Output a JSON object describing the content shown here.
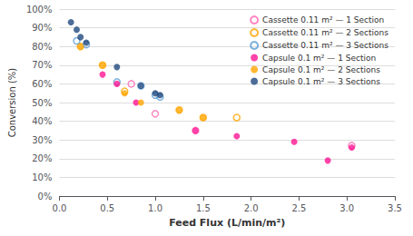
{
  "chart_data": {
    "type": "scatter",
    "xlabel": "Feed Flux (L/min/m²)",
    "ylabel": "Conversion (%)",
    "xlim": [
      0,
      3.5
    ],
    "ylim": [
      0,
      1.0
    ],
    "xticks": [
      {
        "value": 0.0,
        "label": "0.0"
      },
      0.5,
      {
        "value": 1.0,
        "label": "1.0"
      },
      1.5,
      {
        "value": 2.0,
        "label": "2.0"
      },
      2.5,
      {
        "value": 3.0,
        "label": "3.0"
      },
      3.5
    ],
    "yticks": [
      {
        "value": 0.0,
        "label": "0%"
      },
      {
        "value": 0.1,
        "label": "10%"
      },
      {
        "value": 0.2,
        "label": "20%"
      },
      {
        "value": 0.3,
        "label": "30%"
      },
      {
        "value": 0.4,
        "label": "40%"
      },
      {
        "value": 0.5,
        "label": "50%"
      },
      {
        "value": 0.6,
        "label": "60%"
      },
      {
        "value": 0.7,
        "label": "70%"
      },
      {
        "value": 0.8,
        "label": "80%"
      },
      {
        "value": 0.9,
        "label": "90%"
      },
      {
        "value": 1.0,
        "label": "100%"
      }
    ],
    "grid": true,
    "legend": "upper right",
    "series": [
      {
        "name": "Cassette 0.11 m² — 1 Section",
        "color": "#FF69B4",
        "marker": "open_circle",
        "x": [
          0.75,
          1.0,
          1.42,
          3.05
        ],
        "values": [
          0.6,
          0.44,
          0.35,
          0.27
        ]
      },
      {
        "name": "Cassette 0.11 m² — 2 Sections",
        "color": "#FFA500",
        "marker": "open_circle",
        "x": [
          0.22,
          0.45,
          0.68,
          1.25,
          1.5,
          1.85
        ],
        "values": [
          0.8,
          0.7,
          0.56,
          0.46,
          0.42,
          0.42
        ]
      },
      {
        "name": "Cassette 0.11 m² — 3 Sections",
        "color": "#5B9BD5",
        "marker": "open_circle",
        "x": [
          0.18,
          0.28,
          0.6,
          0.85,
          1.0,
          1.05
        ],
        "values": [
          0.83,
          0.81,
          0.61,
          0.59,
          0.54,
          0.53
        ]
      },
      {
        "name": "Capsule 0.1 m² — 1 Section",
        "color": "#FF1493",
        "marker": "circle",
        "x": [
          0.45,
          0.6,
          0.8,
          1.42,
          1.85,
          2.45,
          2.8,
          3.05
        ],
        "values": [
          0.65,
          0.6,
          0.5,
          0.35,
          0.32,
          0.29,
          0.19,
          0.26
        ]
      },
      {
        "name": "Capsule 0.1 m² — 2 Sections",
        "color": "#FFA500",
        "marker": "circle",
        "x": [
          0.22,
          0.45,
          0.68,
          0.85,
          1.25,
          1.5
        ],
        "values": [
          0.8,
          0.7,
          0.55,
          0.5,
          0.46,
          0.42
        ]
      },
      {
        "name": "Capsule 0.1 m² — 3 Sections",
        "color": "#1F497D",
        "marker": "circle",
        "x": [
          0.12,
          0.18,
          0.22,
          0.28,
          0.6,
          0.85,
          1.0,
          1.05
        ],
        "values": [
          0.93,
          0.89,
          0.85,
          0.82,
          0.69,
          0.59,
          0.55,
          0.54
        ]
      }
    ]
  }
}
